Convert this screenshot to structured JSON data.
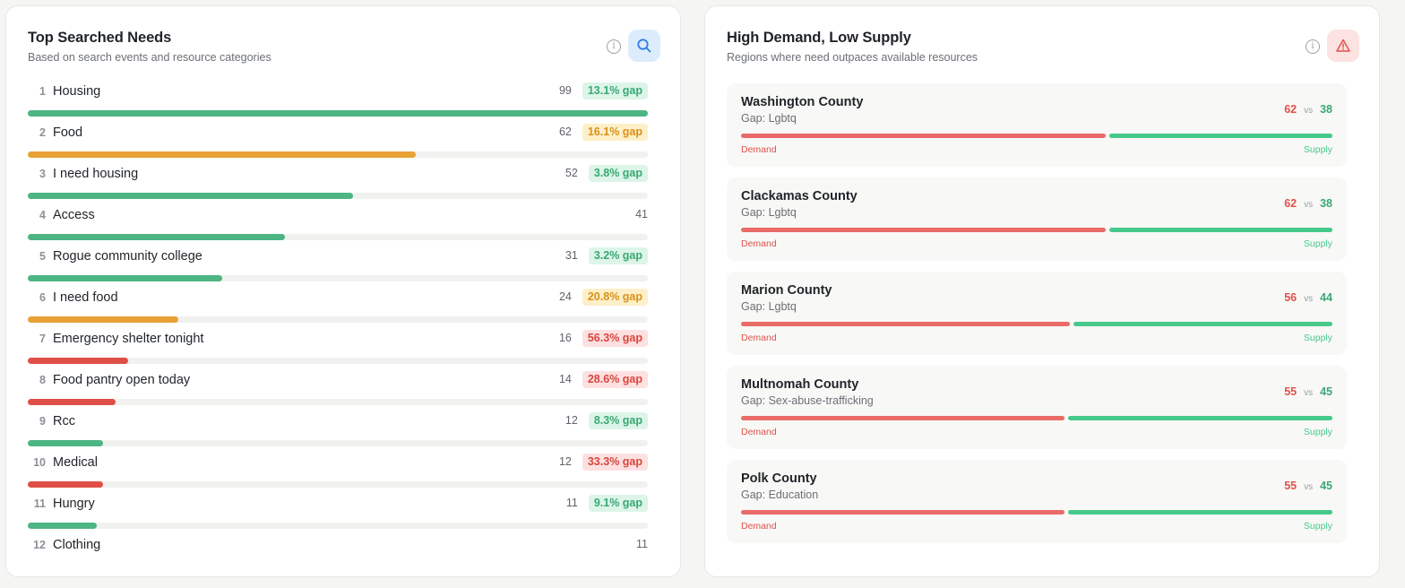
{
  "colors": {
    "green": "#4cb583",
    "orange": "#e9a135",
    "red": "#df4f47",
    "track": "#f1f1ef",
    "demand": "#ea6b67",
    "supply": "#47c98b"
  },
  "top_searched": {
    "title": "Top Searched Needs",
    "subtitle": "Based on search events and resource categories",
    "info_icon": "info-icon",
    "action_icon": "search-icon",
    "max_count": 99,
    "items": [
      {
        "rank": "1",
        "label": "Housing",
        "count": "99",
        "value": 99,
        "gap": "13.1% gap",
        "status": "green"
      },
      {
        "rank": "2",
        "label": "Food",
        "count": "62",
        "value": 62,
        "gap": "16.1% gap",
        "status": "orange"
      },
      {
        "rank": "3",
        "label": "I need housing",
        "count": "52",
        "value": 52,
        "gap": "3.8% gap",
        "status": "green"
      },
      {
        "rank": "4",
        "label": "Access",
        "count": "41",
        "value": 41,
        "gap": "",
        "status": "green"
      },
      {
        "rank": "5",
        "label": "Rogue community college",
        "count": "31",
        "value": 31,
        "gap": "3.2% gap",
        "status": "green"
      },
      {
        "rank": "6",
        "label": "I need food",
        "count": "24",
        "value": 24,
        "gap": "20.8% gap",
        "status": "orange"
      },
      {
        "rank": "7",
        "label": "Emergency shelter tonight",
        "count": "16",
        "value": 16,
        "gap": "56.3% gap",
        "status": "red"
      },
      {
        "rank": "8",
        "label": "Food pantry open today",
        "count": "14",
        "value": 14,
        "gap": "28.6% gap",
        "status": "red"
      },
      {
        "rank": "9",
        "label": "Rcc",
        "count": "12",
        "value": 12,
        "gap": "8.3% gap",
        "status": "green"
      },
      {
        "rank": "10",
        "label": "Medical",
        "count": "12",
        "value": 12,
        "gap": "33.3% gap",
        "status": "red"
      },
      {
        "rank": "11",
        "label": "Hungry",
        "count": "11",
        "value": 11,
        "gap": "9.1% gap",
        "status": "green"
      },
      {
        "rank": "12",
        "label": "Clothing",
        "count": "11",
        "value": 11,
        "gap": "",
        "status": "green"
      }
    ]
  },
  "high_demand": {
    "title": "High Demand, Low Supply",
    "subtitle": "Regions where need outpaces available resources",
    "info_icon": "info-icon",
    "action_icon": "warning-icon",
    "demand_label": "Demand",
    "supply_label": "Supply",
    "vs_label": "vs",
    "regions": [
      {
        "name": "Washington County",
        "gap": "Gap: Lgbtq",
        "demand": "62",
        "supply": "38",
        "demand_value": 62,
        "supply_value": 38
      },
      {
        "name": "Clackamas County",
        "gap": "Gap: Lgbtq",
        "demand": "62",
        "supply": "38",
        "demand_value": 62,
        "supply_value": 38
      },
      {
        "name": "Marion County",
        "gap": "Gap: Lgbtq",
        "demand": "56",
        "supply": "44",
        "demand_value": 56,
        "supply_value": 44
      },
      {
        "name": "Multnomah County",
        "gap": "Gap: Sex-abuse-trafficking",
        "demand": "55",
        "supply": "45",
        "demand_value": 55,
        "supply_value": 45
      },
      {
        "name": "Polk County",
        "gap": "Gap: Education",
        "demand": "55",
        "supply": "45",
        "demand_value": 55,
        "supply_value": 45
      }
    ]
  }
}
